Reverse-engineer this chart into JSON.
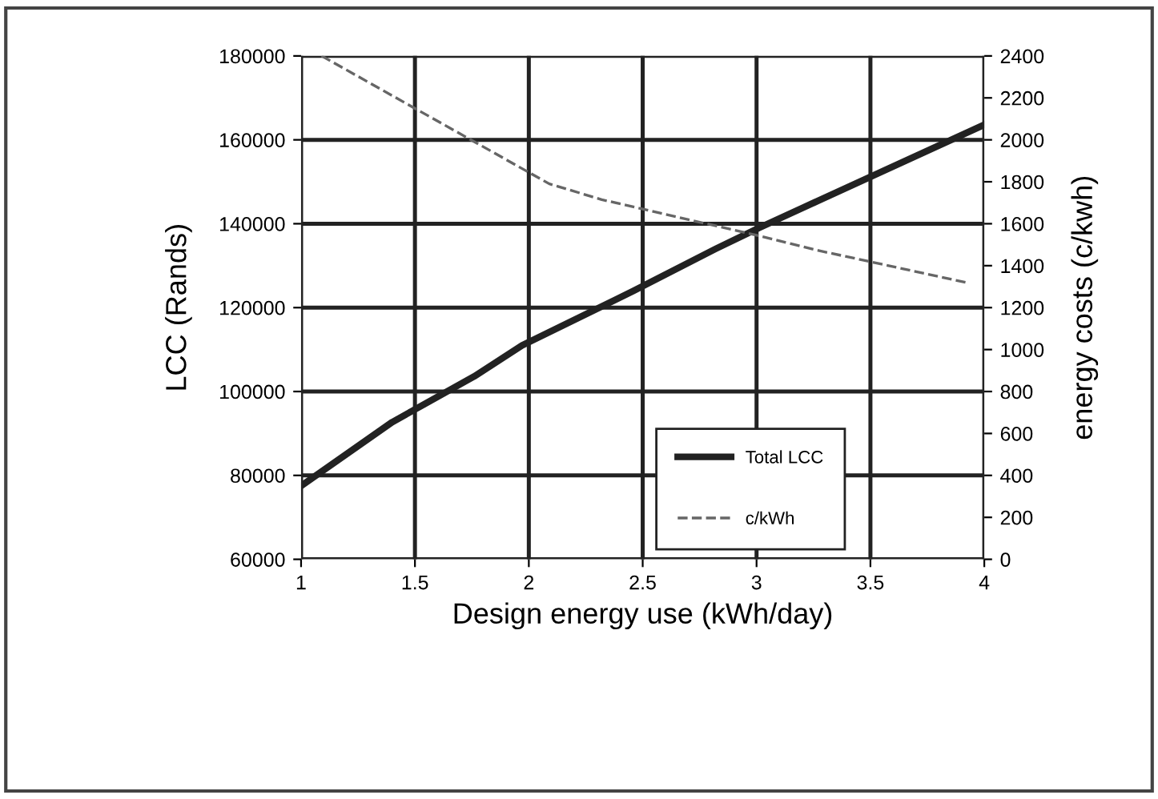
{
  "chart_data": {
    "type": "line",
    "xlabel": "Design energy use (kWh/day)",
    "ylabel": "LCC (Rands)",
    "y2label": "energy costs (c/kwh)",
    "series": [
      {
        "name": "Total LCC",
        "color": "#222222",
        "x": [
          1,
          1.4,
          1.76,
          1.97,
          2.46,
          2.82,
          3.01,
          4
        ],
        "values": [
          77500,
          92700,
          103600,
          111000,
          124000,
          134000,
          139000,
          163600
        ],
        "line_style": "solid"
      },
      {
        "name": "c/kWh",
        "color": "#666666",
        "axis": "y2",
        "x": [
          1.09,
          2.09,
          2.32,
          3.02,
          3.26,
          3.92
        ],
        "values": [
          2400,
          1790,
          1715,
          1540,
          1475,
          1320
        ],
        "line_style": "dashed"
      }
    ],
    "xlim": [
      1,
      4
    ],
    "xticks": [
      1,
      1.5,
      2,
      2.5,
      3,
      3.5,
      4
    ],
    "ylim": [
      60000,
      180000
    ],
    "yticks": [
      60000,
      80000,
      100000,
      120000,
      140000,
      160000,
      180000
    ],
    "y2lim": [
      0,
      2400
    ],
    "y2ticks": [
      0,
      200,
      400,
      600,
      800,
      1000,
      1200,
      1400,
      1600,
      1800,
      2000,
      2200,
      2400
    ],
    "grid": true,
    "legend": "lower right"
  }
}
